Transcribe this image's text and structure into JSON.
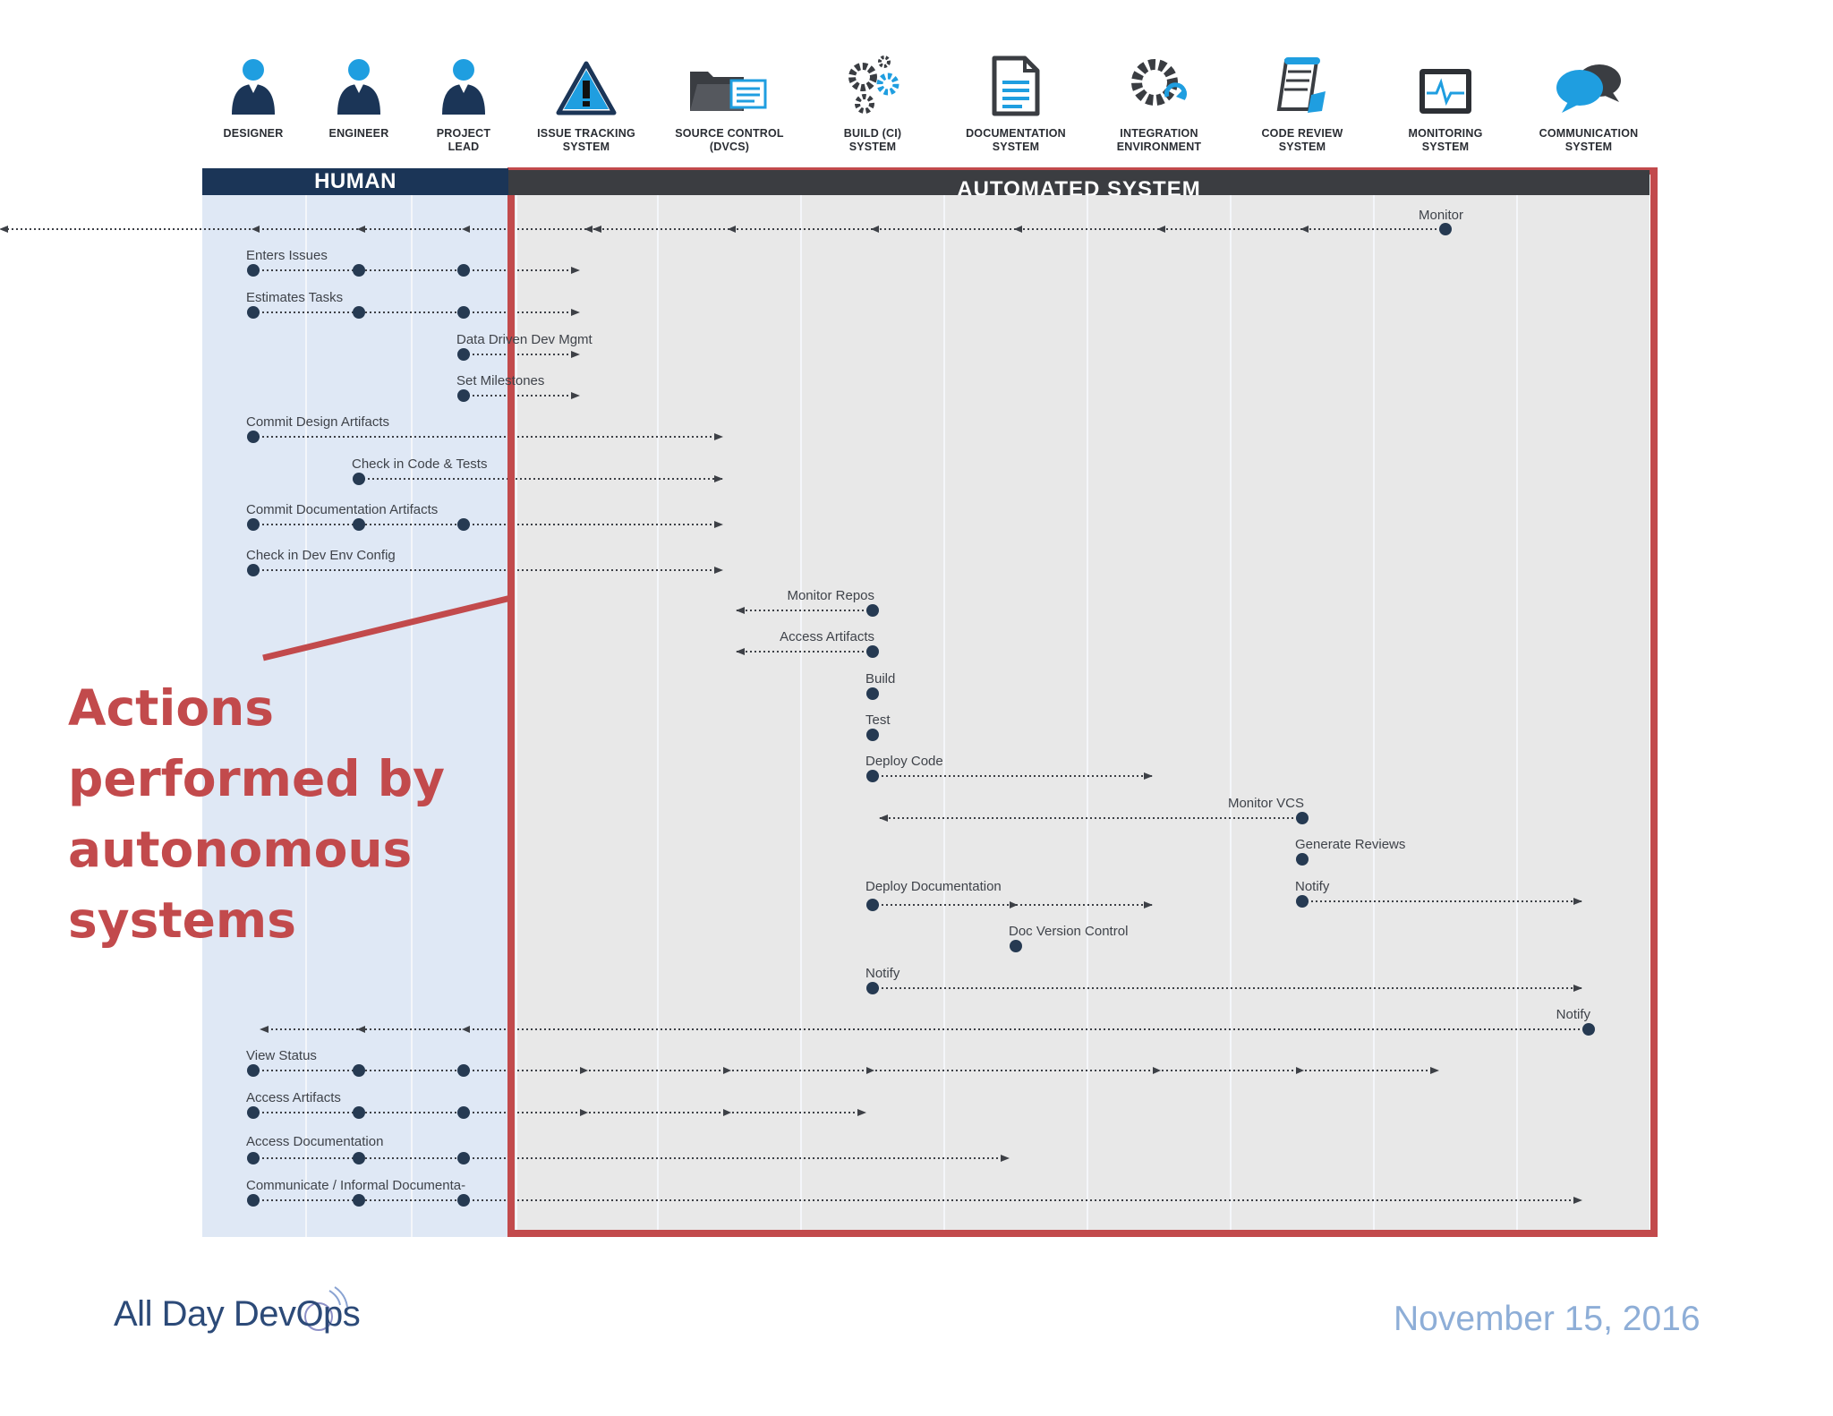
{
  "columns": [
    {
      "label": "DESIGNER",
      "icon": "person-icon"
    },
    {
      "label": "ENGINEER",
      "icon": "person-icon"
    },
    {
      "label": "PROJECT\nLEAD",
      "icon": "person-icon"
    },
    {
      "label": "ISSUE TRACKING\nSYSTEM",
      "icon": "warning-icon"
    },
    {
      "label": "SOURCE CONTROL\n(DVCS)",
      "icon": "folder-icon"
    },
    {
      "label": "BUILD (CI)\nSYSTEM",
      "icon": "gears-icon"
    },
    {
      "label": "DOCUMENTATION\nSYSTEM",
      "icon": "document-icon"
    },
    {
      "label": "INTEGRATION\nENVIRONMENT",
      "icon": "gear-sync-icon"
    },
    {
      "label": "CODE REVIEW\nSYSTEM",
      "icon": "scroll-icon"
    },
    {
      "label": "MONITORING\nSYSTEM",
      "icon": "monitor-icon"
    },
    {
      "label": "COMMUNICATION\nSYSTEM",
      "icon": "chat-bubbles-icon"
    }
  ],
  "bands": {
    "human": "HUMAN",
    "automated": "AUTOMATED SYSTEM"
  },
  "actions": [
    {
      "label": "Monitor",
      "sources": [
        9
      ],
      "target": 11,
      "to_left": [
        0,
        1,
        2,
        3,
        4,
        5,
        6,
        7,
        8
      ]
    },
    {
      "label": "Enters Issues",
      "sources": [
        0,
        1,
        2
      ],
      "target": 3
    },
    {
      "label": "Estimates Tasks",
      "sources": [
        0,
        1,
        2
      ],
      "target": 3
    },
    {
      "label": "Data Driven Dev Mgmt",
      "sources": [
        2
      ],
      "target": 3
    },
    {
      "label": "Set Milestones",
      "sources": [
        2
      ],
      "target": 3
    },
    {
      "label": "Commit Design Artifacts",
      "sources": [
        0
      ],
      "target": 4
    },
    {
      "label": "Check in Code & Tests",
      "sources": [
        1
      ],
      "target": 4
    },
    {
      "label": "Commit Documentation Artifacts",
      "sources": [
        0,
        1,
        2
      ],
      "target": 4
    },
    {
      "label": "Check in Dev Env Config",
      "sources": [
        0
      ],
      "target": 4
    },
    {
      "label": "Monitor Repos",
      "sources": [
        5
      ],
      "target": 4
    },
    {
      "label": "Access Artifacts",
      "sources": [
        5
      ],
      "target": 4
    },
    {
      "label": "Build",
      "sources": [
        5
      ]
    },
    {
      "label": "Test",
      "sources": [
        5
      ]
    },
    {
      "label": "Deploy Code",
      "sources": [
        5
      ],
      "target": 7
    },
    {
      "label": "Monitor VCS",
      "sources": [
        8
      ],
      "target": 5
    },
    {
      "label": "Generate Reviews",
      "sources": [
        8
      ]
    },
    {
      "label": "Notify",
      "sources": [
        8
      ],
      "target": 10
    },
    {
      "label": "Deploy Documentation",
      "sources": [
        5
      ],
      "target": 7,
      "via": [
        6
      ]
    },
    {
      "label": "Doc Version Control",
      "sources": [
        6
      ]
    },
    {
      "label": "Notify",
      "sources": [
        5
      ],
      "target": 10
    },
    {
      "label": "Notify",
      "sources": [
        10
      ],
      "target": 0,
      "via": [
        1,
        2
      ]
    },
    {
      "label": "View Status",
      "sources": [
        0,
        1,
        2
      ],
      "target": 9,
      "via": [
        3,
        4,
        5,
        7,
        8
      ]
    },
    {
      "label": "Access Artifacts",
      "sources": [
        0,
        1,
        2
      ],
      "target": 5,
      "via": [
        3,
        4
      ]
    },
    {
      "label": "Access Documentation",
      "sources": [
        0,
        1,
        2
      ],
      "target": 6
    },
    {
      "label": "Communicate / Informal Documenta-",
      "sources": [
        0,
        1,
        2
      ],
      "target": 10
    }
  ],
  "callout": {
    "lines": [
      "Actions",
      "performed by",
      "autonomous",
      "systems"
    ]
  },
  "footer": {
    "logo": "All Day DevOps",
    "date": "November 15, 2016"
  },
  "colors": {
    "human_band": "#1b3557",
    "auto_band": "#3b3d41",
    "human_bg": "#dfe8f5",
    "auto_bg": "#e8e8e8",
    "highlight": "#c24a4c",
    "icon_blue": "#1f9ee0",
    "icon_navy": "#1b3557",
    "dot": "#263a52"
  }
}
